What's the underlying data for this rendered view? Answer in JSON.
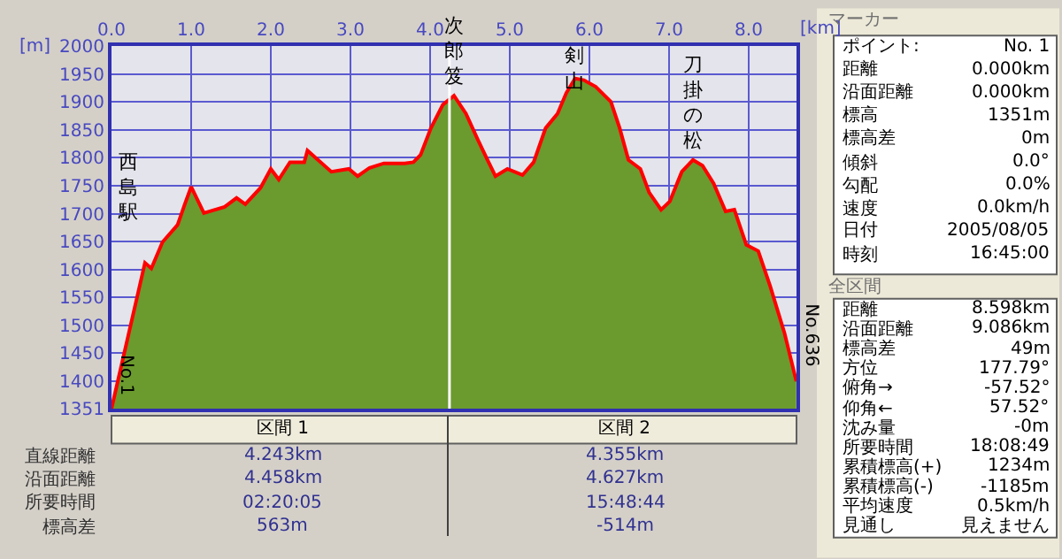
{
  "chart_data": {
    "type": "area",
    "xlabel": "[km]",
    "ylabel": "[m]",
    "x": [
      0,
      0.42,
      0.5,
      0.64,
      0.83,
      0.92,
      1.0,
      1.16,
      1.42,
      1.57,
      1.68,
      1.87,
      2.0,
      2.1,
      2.24,
      2.42,
      2.46,
      2.57,
      2.76,
      2.98,
      3.09,
      3.24,
      3.42,
      3.68,
      3.79,
      3.88,
      4.01,
      4.16,
      4.3,
      4.45,
      4.6,
      4.71,
      4.82,
      4.97,
      5.16,
      5.3,
      5.45,
      5.6,
      5.71,
      5.82,
      5.93,
      6.08,
      6.27,
      6.38,
      6.49,
      6.64,
      6.75,
      6.9,
      7.01,
      7.16,
      7.3,
      7.42,
      7.56,
      7.71,
      7.82,
      7.97,
      8.12,
      8.27,
      8.45,
      8.598
    ],
    "series": [
      {
        "color": "#6b9a2e",
        "values": [
          1351,
          1612,
          1602,
          1649,
          1680,
          1717,
          1748,
          1701,
          1712,
          1728,
          1717,
          1746,
          1780,
          1761,
          1792,
          1792,
          1813,
          1799,
          1775,
          1780,
          1767,
          1782,
          1790,
          1790,
          1792,
          1805,
          1853,
          1895,
          1911,
          1879,
          1832,
          1799,
          1767,
          1780,
          1769,
          1792,
          1853,
          1879,
          1916,
          1942,
          1939,
          1927,
          1900,
          1853,
          1796,
          1780,
          1738,
          1707,
          1722,
          1775,
          1796,
          1786,
          1754,
          1704,
          1707,
          1644,
          1633,
          1570,
          1486,
          1400
        ]
      },
      {
        "type": "line",
        "color": "#ff0000",
        "values": [
          1351,
          1612,
          1602,
          1649,
          1680,
          1717,
          1748,
          1701,
          1712,
          1728,
          1717,
          1746,
          1780,
          1761,
          1792,
          1792,
          1813,
          1799,
          1775,
          1780,
          1767,
          1782,
          1790,
          1790,
          1792,
          1805,
          1853,
          1895,
          1911,
          1879,
          1832,
          1799,
          1767,
          1780,
          1769,
          1792,
          1853,
          1879,
          1916,
          1942,
          1939,
          1927,
          1900,
          1853,
          1796,
          1780,
          1738,
          1707,
          1722,
          1775,
          1796,
          1786,
          1754,
          1704,
          1707,
          1644,
          1633,
          1570,
          1486,
          1400
        ]
      }
    ],
    "xlim": [
      0,
      8.6
    ],
    "ylim": [
      1351,
      2000
    ],
    "xticks": [
      {
        "value": 0,
        "label": "0.0"
      },
      {
        "value": 1,
        "label": "1.0"
      },
      {
        "value": 2,
        "label": "2.0"
      },
      {
        "value": 3,
        "label": "3.0"
      },
      {
        "value": 4,
        "label": "4.0"
      },
      {
        "value": 5,
        "label": "5.0"
      },
      {
        "value": 6,
        "label": "6.0"
      },
      {
        "value": 7,
        "label": "7.0"
      },
      {
        "value": 8,
        "label": "8.0"
      }
    ],
    "yticks": [
      1351,
      1400,
      1450,
      1500,
      1550,
      1600,
      1650,
      1700,
      1750,
      1800,
      1850,
      1900,
      1950,
      2000
    ],
    "grid": true,
    "legend": false,
    "ref_lines": [
      {
        "axis": "x",
        "value": 4.243,
        "color": "#ffffff"
      }
    ],
    "annotations": [
      {
        "text": "西島駅",
        "x": 0.42,
        "y": 1612
      },
      {
        "text": "次郎笈",
        "x": 4.3,
        "y": 1911
      },
      {
        "text": "剣山",
        "x": 5.82,
        "y": 1942
      },
      {
        "text": "刀掛の松",
        "x": 7.3,
        "y": 1796
      },
      {
        "text": "No.1",
        "x": 0,
        "y": 1351
      },
      {
        "text": "No.636",
        "x": 8.598,
        "y": 1400
      },
      "区間 1",
      "区間 2",
      "直線距離",
      "沿面距離",
      "所要時間",
      "標高差",
      "4.243km",
      "4.355km",
      "4.458km",
      "4.627km",
      "02:20:05",
      "15:48:44",
      "563m",
      "-514m",
      "マーカー",
      "ポイント:",
      "No. 1",
      "距離",
      "0.000km",
      "沿面距離",
      "0.000km",
      "標高",
      "1351m",
      "標高差",
      "0m",
      "傾斜",
      "0.0°",
      "勾配",
      "0.0%",
      "速度",
      "0.0km/h",
      "日付",
      "2005/08/05",
      "時刻",
      "16:45:00",
      "全区間",
      "距離",
      "8.598km",
      "沿面距離",
      "9.086km",
      "標高差",
      "49m",
      "方位",
      "177.79°",
      "俯角→",
      "-57.52°",
      "仰角←",
      "57.52°",
      "沈み量",
      "-0m",
      "所要時間",
      "18:08:49",
      "累積標高(+)",
      "1234m",
      "累積標高(-)",
      "-1185m",
      "平均速度",
      "0.5km/h",
      "見通し",
      "見えません"
    ]
  }
}
